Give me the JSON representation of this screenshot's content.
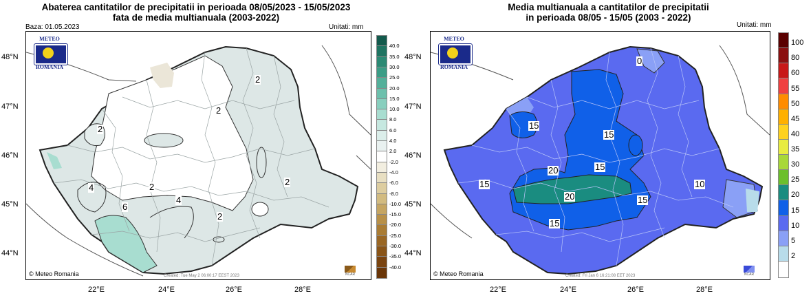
{
  "left_panel": {
    "title_line1": "Abaterea cantitatilor de precipitatii in perioada 08/05/2023 - 15/05/2023",
    "title_line2": "fata de media multianuala (2003-2022)",
    "baza": "Baza: 01.05.2023",
    "units": "Unitati: mm",
    "created": "Created: Tue May  2 06:00:17 EEST 2023",
    "contour_labels": [
      "2",
      "2",
      "2",
      "2",
      "4",
      "2",
      "4",
      "6",
      "2",
      "2"
    ],
    "colorbar": {
      "ticks": [
        "40.0",
        "35.0",
        "30.0",
        "25.0",
        "20.0",
        "15.0",
        "10.0",
        "8.0",
        "6.0",
        "4.0",
        "2.0",
        "-2.0",
        "-4.0",
        "-6.0",
        "-8.0",
        "-10.0",
        "-15.0",
        "-20.0",
        "-25.0",
        "-30.0",
        "-35.0",
        "-40.0"
      ],
      "colors": [
        "#135a4c",
        "#1f7461",
        "#2b8a74",
        "#3b9d86",
        "#53b09a",
        "#6cc0ac",
        "#88cfbe",
        "#a8ddd0",
        "#c6e8e0",
        "#dbeeea",
        "#e9f1f0",
        "#ffffff",
        "#f2eee0",
        "#e8dfc2",
        "#ddcda0",
        "#d2bb80",
        "#c5a562",
        "#b89048",
        "#aa7c34",
        "#9a6724",
        "#8a5518",
        "#7a4410",
        "#6a3608"
      ]
    }
  },
  "right_panel": {
    "title_line1": "Media multianuala a cantitatilor de precipitatii",
    "title_line2": "in perioada 08/05 - 15/05 (2003 - 2022)",
    "units": "Unitati: mm",
    "created": "Created: Fri Jan  6 16:21:08 EET 2023",
    "contour_labels": [
      "0",
      "15",
      "15",
      "15",
      "20",
      "15",
      "15",
      "20",
      "10",
      "15",
      "15"
    ],
    "colorbar": {
      "ticks": [
        "100",
        "80",
        "60",
        "55",
        "50",
        "45",
        "40",
        "35",
        "30",
        "25",
        "20",
        "15",
        "10",
        "5",
        "2"
      ],
      "colors": [
        "#5a0000",
        "#8a1010",
        "#c81818",
        "#f04040",
        "#ff8c00",
        "#ffb000",
        "#ffd21e",
        "#e8ec40",
        "#a8d838",
        "#6cbf2c",
        "#1a8c80",
        "#1060e8",
        "#5a6af0",
        "#8aa0f6",
        "#b8dcea",
        "#ffffff"
      ]
    }
  },
  "shared": {
    "latitudes": [
      "48°N",
      "47°N",
      "46°N",
      "45°N",
      "44°N"
    ],
    "longitudes": [
      "22°E",
      "24°E",
      "26°E",
      "28°E"
    ],
    "logo_top": "METEO",
    "logo_bottom": "ROMANIA",
    "credit": "© Meteo Romania",
    "ncar": "NCAR"
  }
}
